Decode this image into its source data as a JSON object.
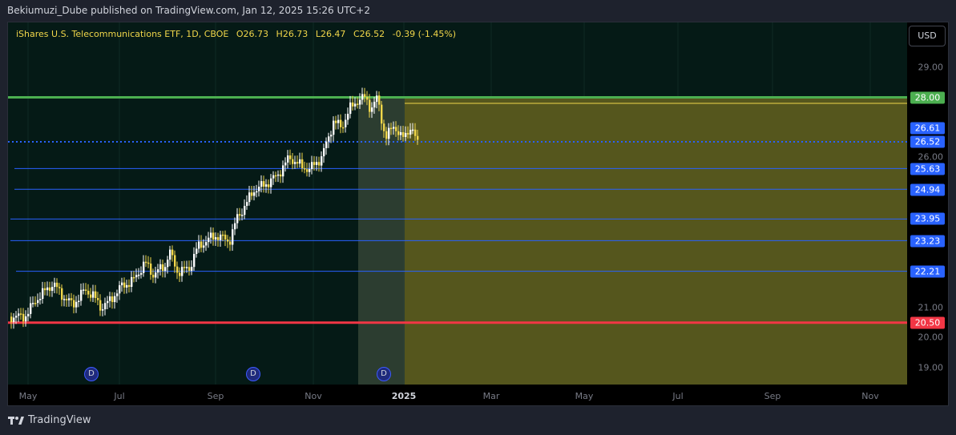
{
  "header": {
    "publisher_caption": "Bekiumuzi_Dube published on TradingView.com, Jan 12, 2025 15:26 UTC+2"
  },
  "legend": {
    "symbol": "iShares U.S. Telecommunications ETF, 1D, CBOE",
    "open": "O26.73",
    "high": "H26.73",
    "low": "L26.47",
    "close": "C26.52",
    "change": "-0.39 (-1.45%)"
  },
  "currency_button": "USD",
  "price_axis": {
    "ticks": [
      "29.00",
      "26.00",
      "21.00",
      "20.00",
      "19.00"
    ],
    "labels": [
      {
        "text": "28.00",
        "color": "#4caf50"
      },
      {
        "text": "26.61",
        "color": "#2962ff"
      },
      {
        "text": "26.52",
        "color": "#2962ff"
      },
      {
        "text": "25.63",
        "color": "#2962ff"
      },
      {
        "text": "24.94",
        "color": "#2962ff"
      },
      {
        "text": "23.95",
        "color": "#2962ff"
      },
      {
        "text": "23.23",
        "color": "#2962ff"
      },
      {
        "text": "22.21",
        "color": "#2962ff"
      },
      {
        "text": "20.50",
        "color": "#f23645"
      }
    ]
  },
  "time_axis": {
    "labels": [
      "May",
      "Jul",
      "Sep",
      "Nov",
      "2025",
      "Mar",
      "May",
      "Jul",
      "Sep",
      "Nov"
    ]
  },
  "dividend_markers": [
    "D",
    "D",
    "D"
  ],
  "footer": {
    "brand": "TradingView",
    "icon": "tradingview-logo-icon"
  },
  "colors": {
    "support_red": "#f23645",
    "resistance_green": "#4caf50",
    "level_blue": "#2962ff",
    "candle_up": "#ffffff",
    "candle_down": "#f0d64a",
    "zone_fill": "#5a5a1e"
  }
}
